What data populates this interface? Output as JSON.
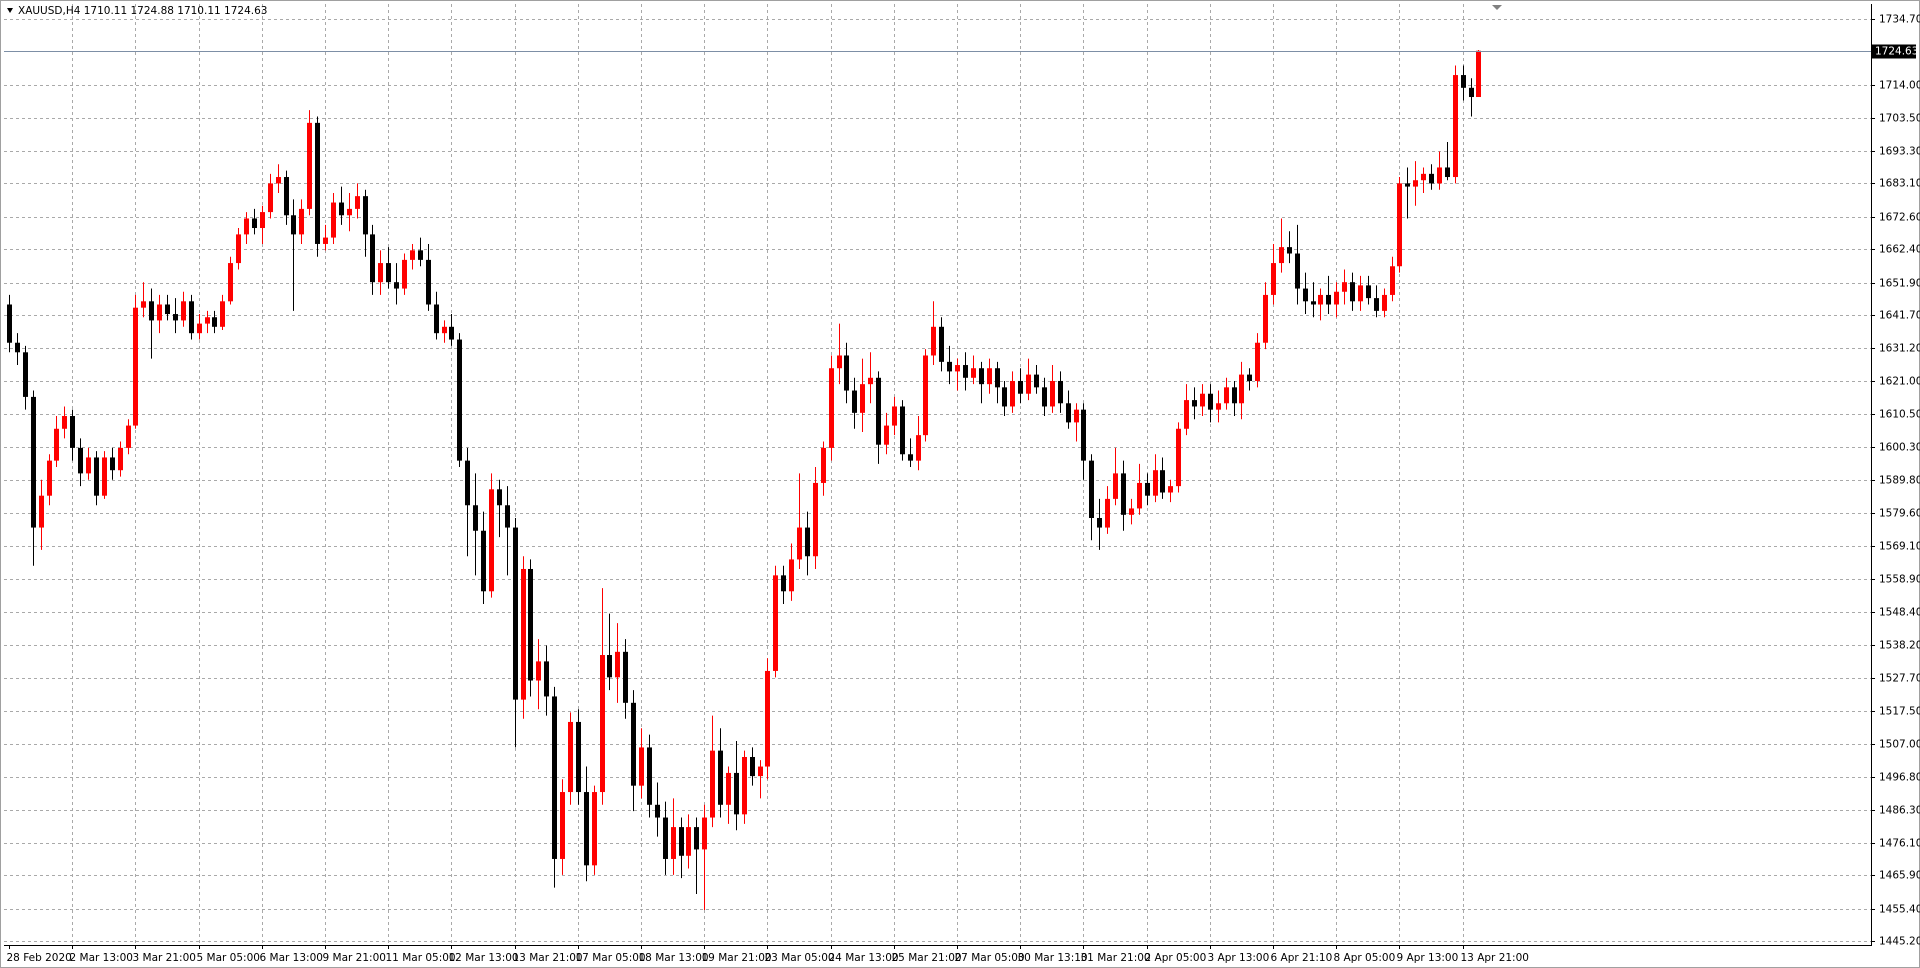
{
  "chart_data": {
    "type": "candlestick",
    "title": "XAUUSD,H4  1710.11 1724.88 1710.11 1724.63",
    "up_color": "#ff0000",
    "down_color": "#000000",
    "grid": true,
    "ylim": [
      1444.0,
      1739.3
    ],
    "yticks": [
      {
        "value": 1734.7,
        "label": "1734.70"
      },
      {
        "value": 1714.0,
        "label": "1714.00"
      },
      {
        "value": 1703.5,
        "label": "1703.50"
      },
      {
        "value": 1693.3,
        "label": "1693.30"
      },
      {
        "value": 1683.1,
        "label": "1683.10"
      },
      {
        "value": 1672.6,
        "label": "1672.60"
      },
      {
        "value": 1662.4,
        "label": "1662.40"
      },
      {
        "value": 1651.9,
        "label": "1651.90"
      },
      {
        "value": 1641.7,
        "label": "1641.70"
      },
      {
        "value": 1631.2,
        "label": "1631.20"
      },
      {
        "value": 1621.0,
        "label": "1621.00"
      },
      {
        "value": 1610.5,
        "label": "1610.50"
      },
      {
        "value": 1600.3,
        "label": "1600.30"
      },
      {
        "value": 1589.8,
        "label": "1589.80"
      },
      {
        "value": 1579.6,
        "label": "1579.60"
      },
      {
        "value": 1569.1,
        "label": "1569.10"
      },
      {
        "value": 1558.9,
        "label": "1558.90"
      },
      {
        "value": 1548.4,
        "label": "1548.40"
      },
      {
        "value": 1538.2,
        "label": "1538.20"
      },
      {
        "value": 1527.7,
        "label": "1527.70"
      },
      {
        "value": 1517.5,
        "label": "1517.50"
      },
      {
        "value": 1507.0,
        "label": "1507.00"
      },
      {
        "value": 1496.8,
        "label": "1496.80"
      },
      {
        "value": 1486.3,
        "label": "1486.30"
      },
      {
        "value": 1476.1,
        "label": "1476.10"
      },
      {
        "value": 1465.9,
        "label": "1465.90"
      },
      {
        "value": 1455.4,
        "label": "1455.40"
      },
      {
        "value": 1445.2,
        "label": "1445.20"
      }
    ],
    "current_price": 1724.63,
    "categories": [
      "28 Feb 2020",
      null,
      null,
      null,
      null,
      null,
      null,
      null,
      "2 Mar 13:00",
      null,
      null,
      null,
      null,
      null,
      null,
      null,
      "3 Mar 21:00",
      null,
      null,
      null,
      null,
      null,
      null,
      null,
      "5 Mar 05:00",
      null,
      null,
      null,
      null,
      null,
      null,
      null,
      "6 Mar 13:00",
      null,
      null,
      null,
      null,
      null,
      null,
      null,
      "9 Mar 21:00",
      null,
      null,
      null,
      null,
      null,
      null,
      null,
      "11 Mar 05:00",
      null,
      null,
      null,
      null,
      null,
      null,
      null,
      "12 Mar 13:00",
      null,
      null,
      null,
      null,
      null,
      null,
      null,
      "13 Mar 21:00",
      null,
      null,
      null,
      null,
      null,
      null,
      null,
      "17 Mar 05:00",
      null,
      null,
      null,
      null,
      null,
      null,
      null,
      "18 Mar 13:00",
      null,
      null,
      null,
      null,
      null,
      null,
      null,
      "19 Mar 21:00",
      null,
      null,
      null,
      null,
      null,
      null,
      null,
      "23 Mar 05:00",
      null,
      null,
      null,
      null,
      null,
      null,
      null,
      "24 Mar 13:00",
      null,
      null,
      null,
      null,
      null,
      null,
      null,
      "25 Mar 21:00",
      null,
      null,
      null,
      null,
      null,
      null,
      null,
      "27 Mar 05:00",
      null,
      null,
      null,
      null,
      null,
      null,
      null,
      "30 Mar 13:10",
      null,
      null,
      null,
      null,
      null,
      null,
      null,
      "31 Mar 21:00",
      null,
      null,
      null,
      null,
      null,
      null,
      null,
      "2 Apr 05:00",
      null,
      null,
      null,
      null,
      null,
      null,
      null,
      "3 Apr 13:00",
      null,
      null,
      null,
      null,
      null,
      null,
      null,
      "6 Apr 21:10",
      null,
      null,
      null,
      null,
      null,
      null,
      null,
      "8 Apr 05:00",
      null,
      null,
      null,
      null,
      null,
      null,
      null,
      "9 Apr 13:00",
      null,
      null,
      null,
      null,
      null,
      null,
      null,
      "13 Apr 21:00",
      null,
      null
    ],
    "ohlc": [
      [
        1645,
        1648,
        1630,
        1633
      ],
      [
        1633,
        1636,
        1626,
        1630
      ],
      [
        1630,
        1632,
        1612,
        1616
      ],
      [
        1616,
        1618,
        1563,
        1575
      ],
      [
        1575,
        1590,
        1568,
        1585
      ],
      [
        1585,
        1598,
        1582,
        1596
      ],
      [
        1596,
        1610,
        1594,
        1606
      ],
      [
        1606,
        1613,
        1603,
        1610
      ],
      [
        1610,
        1612,
        1596,
        1600
      ],
      [
        1600,
        1603,
        1588,
        1592
      ],
      [
        1592,
        1600,
        1590,
        1597
      ],
      [
        1597,
        1599,
        1582,
        1585
      ],
      [
        1585,
        1599,
        1584,
        1597
      ],
      [
        1597,
        1600,
        1590,
        1593
      ],
      [
        1593,
        1602,
        1591,
        1600
      ],
      [
        1600,
        1609,
        1598,
        1607
      ],
      [
        1607,
        1648,
        1606,
        1644
      ],
      [
        1644,
        1652,
        1641,
        1646
      ],
      [
        1646,
        1650,
        1628,
        1640
      ],
      [
        1640,
        1648,
        1636,
        1645
      ],
      [
        1645,
        1648,
        1640,
        1642
      ],
      [
        1642,
        1647,
        1636,
        1640
      ],
      [
        1640,
        1649,
        1638,
        1646
      ],
      [
        1646,
        1648,
        1634,
        1636
      ],
      [
        1636,
        1642,
        1634,
        1639
      ],
      [
        1639,
        1643,
        1636,
        1641
      ],
      [
        1641,
        1643,
        1636,
        1638
      ],
      [
        1638,
        1648,
        1637,
        1646
      ],
      [
        1646,
        1660,
        1645,
        1658
      ],
      [
        1658,
        1669,
        1656,
        1667
      ],
      [
        1667,
        1674,
        1664,
        1672
      ],
      [
        1672,
        1675,
        1667,
        1669
      ],
      [
        1669,
        1676,
        1664,
        1674
      ],
      [
        1674,
        1686,
        1672,
        1683
      ],
      [
        1683,
        1689,
        1680,
        1685
      ],
      [
        1685,
        1687,
        1670,
        1673
      ],
      [
        1673,
        1678,
        1643,
        1667
      ],
      [
        1667,
        1678,
        1664,
        1675
      ],
      [
        1675,
        1706,
        1673,
        1702
      ],
      [
        1702,
        1704,
        1660,
        1664
      ],
      [
        1664,
        1670,
        1662,
        1666
      ],
      [
        1666,
        1680,
        1664,
        1677
      ],
      [
        1677,
        1682,
        1670,
        1673
      ],
      [
        1673,
        1680,
        1668,
        1675
      ],
      [
        1675,
        1683,
        1672,
        1679
      ],
      [
        1679,
        1681,
        1660,
        1667
      ],
      [
        1667,
        1670,
        1648,
        1652
      ],
      [
        1652,
        1662,
        1648,
        1658
      ],
      [
        1658,
        1663,
        1650,
        1652
      ],
      [
        1652,
        1658,
        1645,
        1650
      ],
      [
        1650,
        1661,
        1648,
        1659
      ],
      [
        1659,
        1664,
        1656,
        1662
      ],
      [
        1662,
        1666,
        1657,
        1659
      ],
      [
        1659,
        1664,
        1643,
        1645
      ],
      [
        1645,
        1649,
        1634,
        1636
      ],
      [
        1636,
        1640,
        1633,
        1638
      ],
      [
        1638,
        1642,
        1632,
        1634
      ],
      [
        1634,
        1636,
        1594,
        1596
      ],
      [
        1596,
        1600,
        1566,
        1582
      ],
      [
        1582,
        1592,
        1560,
        1574
      ],
      [
        1574,
        1580,
        1551,
        1555
      ],
      [
        1555,
        1592,
        1553,
        1587
      ],
      [
        1587,
        1590,
        1572,
        1582
      ],
      [
        1582,
        1588,
        1560,
        1575
      ],
      [
        1575,
        1578,
        1506,
        1521
      ],
      [
        1521,
        1566,
        1515,
        1562
      ],
      [
        1562,
        1565,
        1522,
        1527
      ],
      [
        1527,
        1540,
        1518,
        1533
      ],
      [
        1533,
        1538,
        1516,
        1522
      ],
      [
        1522,
        1525,
        1462,
        1471
      ],
      [
        1471,
        1496,
        1466,
        1492
      ],
      [
        1492,
        1517,
        1488,
        1514
      ],
      [
        1514,
        1518,
        1488,
        1492
      ],
      [
        1492,
        1500,
        1464,
        1469
      ],
      [
        1469,
        1494,
        1466,
        1492
      ],
      [
        1492,
        1556,
        1488,
        1535
      ],
      [
        1535,
        1548,
        1524,
        1528
      ],
      [
        1528,
        1545,
        1520,
        1536
      ],
      [
        1536,
        1540,
        1515,
        1520
      ],
      [
        1520,
        1524,
        1486,
        1494
      ],
      [
        1494,
        1512,
        1490,
        1506
      ],
      [
        1506,
        1510,
        1484,
        1488
      ],
      [
        1488,
        1495,
        1478,
        1484
      ],
      [
        1484,
        1489,
        1466,
        1471
      ],
      [
        1471,
        1490,
        1466,
        1481
      ],
      [
        1481,
        1484,
        1465,
        1472
      ],
      [
        1472,
        1485,
        1468,
        1481
      ],
      [
        1481,
        1484,
        1460,
        1474
      ],
      [
        1474,
        1488,
        1455,
        1484
      ],
      [
        1484,
        1516,
        1481,
        1505
      ],
      [
        1505,
        1512,
        1484,
        1488
      ],
      [
        1488,
        1500,
        1482,
        1498
      ],
      [
        1498,
        1508,
        1480,
        1485
      ],
      [
        1485,
        1505,
        1482,
        1503
      ],
      [
        1503,
        1506,
        1494,
        1497
      ],
      [
        1497,
        1502,
        1490,
        1500
      ],
      [
        1500,
        1534,
        1496,
        1530
      ],
      [
        1530,
        1563,
        1528,
        1560
      ],
      [
        1560,
        1563,
        1551,
        1555
      ],
      [
        1555,
        1570,
        1552,
        1565
      ],
      [
        1565,
        1592,
        1562,
        1575
      ],
      [
        1575,
        1580,
        1560,
        1566
      ],
      [
        1566,
        1594,
        1562,
        1589
      ],
      [
        1589,
        1602,
        1585,
        1600
      ],
      [
        1600,
        1629,
        1596,
        1625
      ],
      [
        1625,
        1639,
        1620,
        1629
      ],
      [
        1629,
        1633,
        1614,
        1618
      ],
      [
        1618,
        1622,
        1606,
        1611
      ],
      [
        1611,
        1628,
        1605,
        1620
      ],
      [
        1620,
        1630,
        1614,
        1622
      ],
      [
        1622,
        1624,
        1595,
        1601
      ],
      [
        1601,
        1611,
        1598,
        1607
      ],
      [
        1607,
        1616,
        1604,
        1613
      ],
      [
        1613,
        1615,
        1596,
        1598
      ],
      [
        1598,
        1603,
        1594,
        1596
      ],
      [
        1596,
        1610,
        1593,
        1604
      ],
      [
        1604,
        1631,
        1602,
        1629
      ],
      [
        1629,
        1646,
        1626,
        1638
      ],
      [
        1638,
        1641,
        1624,
        1627
      ],
      [
        1627,
        1632,
        1620,
        1624
      ],
      [
        1624,
        1628,
        1618,
        1626
      ],
      [
        1626,
        1630,
        1618,
        1622
      ],
      [
        1622,
        1629,
        1620,
        1625
      ],
      [
        1625,
        1627,
        1614,
        1620
      ],
      [
        1620,
        1628,
        1617,
        1625
      ],
      [
        1625,
        1627,
        1614,
        1619
      ],
      [
        1619,
        1621,
        1610,
        1613
      ],
      [
        1613,
        1624,
        1611,
        1621
      ],
      [
        1621,
        1625,
        1614,
        1617
      ],
      [
        1617,
        1628,
        1615,
        1623
      ],
      [
        1623,
        1626,
        1617,
        1619
      ],
      [
        1619,
        1622,
        1610,
        1613
      ],
      [
        1613,
        1626,
        1611,
        1621
      ],
      [
        1621,
        1624,
        1611,
        1614
      ],
      [
        1614,
        1618,
        1606,
        1608
      ],
      [
        1608,
        1614,
        1602,
        1612
      ],
      [
        1612,
        1614,
        1590,
        1596
      ],
      [
        1596,
        1598,
        1571,
        1578
      ],
      [
        1578,
        1584,
        1568,
        1575
      ],
      [
        1575,
        1588,
        1573,
        1584
      ],
      [
        1584,
        1600,
        1582,
        1592
      ],
      [
        1592,
        1596,
        1574,
        1579
      ],
      [
        1579,
        1584,
        1576,
        1581
      ],
      [
        1581,
        1595,
        1579,
        1589
      ],
      [
        1589,
        1592,
        1582,
        1585
      ],
      [
        1585,
        1598,
        1583,
        1593
      ],
      [
        1593,
        1597,
        1584,
        1586
      ],
      [
        1586,
        1590,
        1583,
        1588
      ],
      [
        1588,
        1608,
        1586,
        1606
      ],
      [
        1606,
        1620,
        1604,
        1615
      ],
      [
        1615,
        1619,
        1609,
        1613
      ],
      [
        1613,
        1620,
        1610,
        1617
      ],
      [
        1617,
        1620,
        1608,
        1612
      ],
      [
        1612,
        1618,
        1608,
        1614
      ],
      [
        1614,
        1622,
        1612,
        1619
      ],
      [
        1619,
        1621,
        1610,
        1614
      ],
      [
        1614,
        1627,
        1609,
        1623
      ],
      [
        1623,
        1625,
        1618,
        1621
      ],
      [
        1621,
        1636,
        1619,
        1633
      ],
      [
        1633,
        1652,
        1631,
        1648
      ],
      [
        1648,
        1664,
        1645,
        1658
      ],
      [
        1658,
        1672,
        1655,
        1663
      ],
      [
        1663,
        1668,
        1658,
        1661
      ],
      [
        1661,
        1670,
        1645,
        1650
      ],
      [
        1650,
        1655,
        1642,
        1646
      ],
      [
        1646,
        1652,
        1641,
        1645
      ],
      [
        1645,
        1650,
        1640,
        1648
      ],
      [
        1648,
        1654,
        1642,
        1645
      ],
      [
        1645,
        1652,
        1641,
        1649
      ],
      [
        1649,
        1656,
        1645,
        1652
      ],
      [
        1652,
        1655,
        1643,
        1646
      ],
      [
        1646,
        1654,
        1643,
        1651
      ],
      [
        1651,
        1654,
        1645,
        1647
      ],
      [
        1647,
        1651,
        1641,
        1643
      ],
      [
        1643,
        1650,
        1641,
        1648
      ],
      [
        1648,
        1660,
        1646,
        1657
      ],
      [
        1657,
        1685,
        1655,
        1683
      ],
      [
        1683,
        1688,
        1672,
        1682
      ],
      [
        1682,
        1690,
        1676,
        1684
      ],
      [
        1684,
        1688,
        1680,
        1686
      ],
      [
        1686,
        1689,
        1681,
        1683
      ],
      [
        1683,
        1693,
        1681,
        1688
      ],
      [
        1688,
        1696,
        1684,
        1685
      ],
      [
        1685,
        1720,
        1683,
        1717
      ],
      [
        1717,
        1720,
        1709,
        1713
      ],
      [
        1713,
        1716,
        1704,
        1710.11
      ],
      [
        1710.11,
        1724.88,
        1710.11,
        1724.63
      ]
    ]
  }
}
